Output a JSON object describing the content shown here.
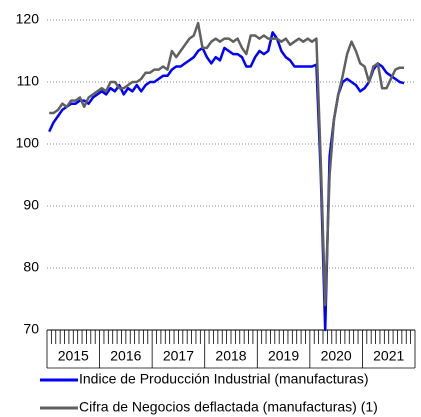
{
  "chart_data": {
    "type": "line",
    "categories": [
      null,
      null,
      null,
      null,
      null,
      null,
      "2015",
      null,
      null,
      null,
      null,
      null,
      null,
      null,
      null,
      null,
      null,
      null,
      "2016",
      null,
      null,
      null,
      null,
      null,
      null,
      null,
      null,
      null,
      null,
      null,
      "2017",
      null,
      null,
      null,
      null,
      null,
      null,
      null,
      null,
      null,
      null,
      null,
      "2018",
      null,
      null,
      null,
      null,
      null,
      null,
      null,
      null,
      null,
      null,
      null,
      "2019",
      null,
      null,
      null,
      null,
      null,
      null,
      null,
      null,
      null,
      null,
      null,
      "2020",
      null,
      null,
      null,
      null,
      null,
      null,
      null,
      null,
      null,
      null,
      null,
      "2021",
      null,
      null,
      null,
      null,
      null
    ],
    "series": [
      {
        "name": "Indice de Producción Industrial (manufacturas)",
        "color": "#0000ff",
        "values": [
          102,
          103.5,
          104.5,
          105.5,
          106,
          106.5,
          106.5,
          107,
          107,
          106.5,
          107.5,
          108,
          108.5,
          108,
          109,
          108.5,
          109.5,
          108,
          109,
          108.5,
          109.5,
          108.5,
          109.5,
          110,
          110,
          110.5,
          111,
          111,
          112,
          112.5,
          112.5,
          113,
          113.5,
          114,
          115,
          115.5,
          114,
          113,
          114,
          113.5,
          115.5,
          115,
          114.5,
          114.5,
          114,
          112.5,
          112.5,
          114,
          115,
          114.5,
          115,
          118,
          117,
          115,
          114,
          113.5,
          112.5,
          112.5,
          112.5,
          112.5,
          112.5,
          112.8,
          95,
          70,
          98,
          104,
          108,
          110,
          110.5,
          110,
          109.5,
          108.5,
          109,
          110,
          112,
          113,
          112.5,
          111.5,
          111,
          110.5,
          110,
          109.8,
          null,
          null
        ]
      },
      {
        "name": "Cifra de Negocios deflactada (manufacturas) (1)",
        "color": "#606060",
        "values": [
          105,
          105,
          105.5,
          106.5,
          106,
          107,
          107,
          107.5,
          106,
          107.5,
          108,
          108.5,
          109,
          108.5,
          110,
          110,
          109,
          109,
          109.5,
          110,
          110,
          110.5,
          111.5,
          111.5,
          112,
          112,
          112.5,
          112,
          115,
          114,
          115,
          116,
          117,
          117.5,
          119.5,
          115.5,
          115.5,
          116.5,
          117,
          116.5,
          117,
          117,
          116.5,
          117,
          115.5,
          114.5,
          117.5,
          117.5,
          117,
          117.5,
          117,
          117,
          117,
          116.5,
          117,
          116,
          116.5,
          117,
          116.5,
          117,
          116.5,
          117,
          97,
          74,
          95,
          104,
          108,
          111,
          114.5,
          116.5,
          115,
          113,
          112.5,
          110,
          112.5,
          113,
          109,
          109,
          110.5,
          112,
          112.3,
          112.3,
          null,
          null
        ]
      }
    ],
    "ylim": [
      70,
      120
    ],
    "yticks": [
      70,
      80,
      90,
      100,
      110,
      120
    ],
    "grid": true,
    "legend": "bottom"
  }
}
